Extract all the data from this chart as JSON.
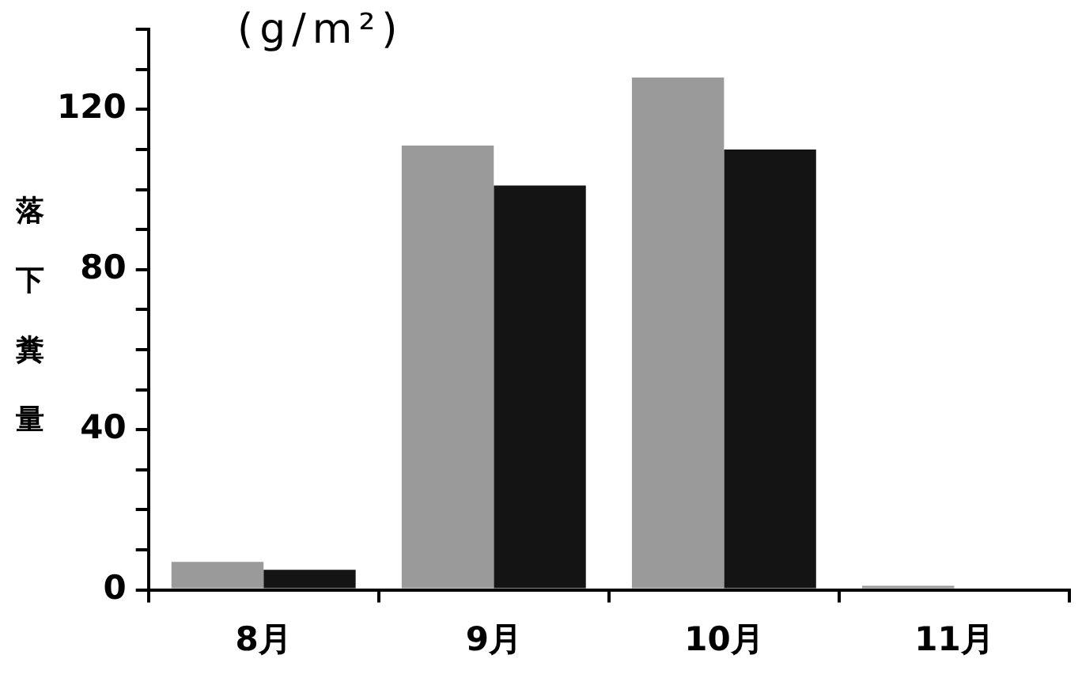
{
  "chart_data": {
    "type": "bar",
    "ylabel": "落下糞量",
    "annotations": [
      "(g/m²)"
    ],
    "categories": [
      "8月",
      "9月",
      "10月",
      "11月"
    ],
    "series": [
      {
        "color": "#9a9a9a",
        "values": [
          7,
          111,
          128,
          1
        ]
      },
      {
        "color": "#141414",
        "values": [
          5,
          101,
          110,
          0
        ]
      }
    ],
    "ylim": [
      0,
      140
    ],
    "yticks": [
      0,
      {
        "value": 10,
        "label": null
      },
      {
        "value": 20,
        "label": null
      },
      {
        "value": 30,
        "label": null
      },
      40,
      {
        "value": 50,
        "label": null
      },
      {
        "value": 60,
        "label": null
      },
      {
        "value": 70,
        "label": null
      },
      80,
      {
        "value": 90,
        "label": null
      },
      {
        "value": 100,
        "label": null
      },
      {
        "value": 110,
        "label": null
      },
      120,
      {
        "value": 130,
        "label": null
      },
      {
        "value": 140,
        "label": null
      }
    ],
    "grid": false,
    "legend": false
  }
}
